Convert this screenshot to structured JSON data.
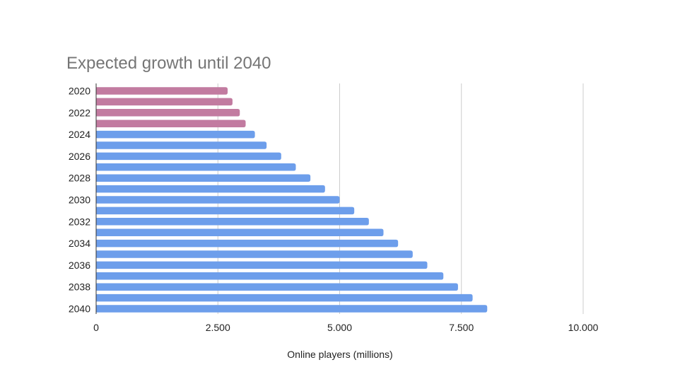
{
  "chart_data": {
    "type": "bar",
    "orientation": "horizontal",
    "title": "Expected growth until 2040",
    "xlabel": "Online players (millions)",
    "ylabel": "",
    "xlim": [
      0,
      10000
    ],
    "x_ticks": [
      "0",
      "2.500",
      "5.000",
      "7.500",
      "10.000"
    ],
    "x_tick_values": [
      0,
      2500,
      5000,
      7500,
      10000
    ],
    "categories": [
      "2020",
      "2021",
      "2022",
      "2023",
      "2024",
      "2025",
      "2026",
      "2027",
      "2028",
      "2029",
      "2030",
      "2031",
      "2032",
      "2033",
      "2034",
      "2035",
      "2036",
      "2037",
      "2038",
      "2039",
      "2040"
    ],
    "category_labels_shown": [
      "2020",
      "",
      "2022",
      "",
      "2024",
      "",
      "2026",
      "",
      "2028",
      "",
      "2030",
      "",
      "2032",
      "",
      "2034",
      "",
      "2036",
      "",
      "2038",
      "",
      "2040"
    ],
    "values": [
      2700,
      2800,
      2950,
      3070,
      3260,
      3500,
      3800,
      4100,
      4400,
      4700,
      5000,
      5300,
      5600,
      5900,
      6200,
      6500,
      6800,
      7130,
      7430,
      7730,
      8030
    ],
    "bar_colors": [
      "#c27ba0",
      "#c27ba0",
      "#c27ba0",
      "#c27ba0",
      "#6d9eeb",
      "#6d9eeb",
      "#6d9eeb",
      "#6d9eeb",
      "#6d9eeb",
      "#6d9eeb",
      "#6d9eeb",
      "#6d9eeb",
      "#6d9eeb",
      "#6d9eeb",
      "#6d9eeb",
      "#6d9eeb",
      "#6d9eeb",
      "#6d9eeb",
      "#6d9eeb",
      "#6d9eeb",
      "#6d9eeb"
    ],
    "grid": true,
    "legend": "none"
  }
}
